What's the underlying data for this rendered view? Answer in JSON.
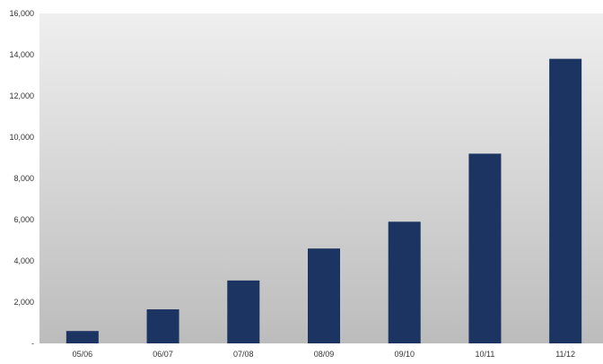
{
  "chart_data": {
    "type": "bar",
    "categories": [
      "05/06",
      "06/07",
      "07/08",
      "08/09",
      "09/10",
      "10/11",
      "11/12"
    ],
    "values": [
      600,
      1650,
      3050,
      4600,
      5900,
      9200,
      13800
    ],
    "ylim": [
      0,
      16000
    ],
    "yticks": [
      0,
      2000,
      4000,
      6000,
      8000,
      10000,
      12000,
      14000,
      16000
    ],
    "ytick_labels": [
      "-",
      "2,000",
      "4,000",
      "6,000",
      "8,000",
      "10,000",
      "12,000",
      "14,000",
      "16,000"
    ],
    "bar_color": "#1c3461",
    "background_gradient": [
      "#efefef",
      "#bcbcbc"
    ],
    "grid": false,
    "legend": "none"
  }
}
